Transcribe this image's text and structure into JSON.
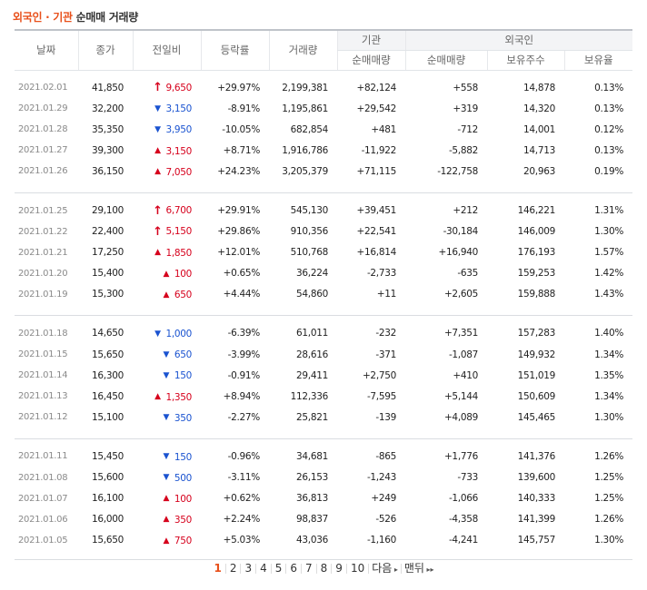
{
  "title": {
    "part1": "외국인 · 기관",
    "part2": "순매매 거래량"
  },
  "headers": {
    "date": "날짜",
    "close": "종가",
    "diff": "전일비",
    "rate": "등락률",
    "volume": "거래량",
    "inst": "기관",
    "foreign": "외국인",
    "inst_net": "순매매량",
    "for_net": "순매매량",
    "hold": "보유주수",
    "ratio": "보유율"
  },
  "groups": [
    [
      {
        "date": "2021.02.01",
        "close": "41,850",
        "dir": "limit-up",
        "diff": "9,650",
        "rate": "+29.97%",
        "volume": "2,199,381",
        "inst": "+82,124",
        "foreign": "+558",
        "hold": "14,878",
        "ratio": "0.13%"
      },
      {
        "date": "2021.01.29",
        "close": "32,200",
        "dir": "down",
        "diff": "3,150",
        "rate": "-8.91%",
        "volume": "1,195,861",
        "inst": "+29,542",
        "foreign": "+319",
        "hold": "14,320",
        "ratio": "0.13%"
      },
      {
        "date": "2021.01.28",
        "close": "35,350",
        "dir": "down",
        "diff": "3,950",
        "rate": "-10.05%",
        "volume": "682,854",
        "inst": "+481",
        "foreign": "-712",
        "hold": "14,001",
        "ratio": "0.12%"
      },
      {
        "date": "2021.01.27",
        "close": "39,300",
        "dir": "up",
        "diff": "3,150",
        "rate": "+8.71%",
        "volume": "1,916,786",
        "inst": "-11,922",
        "foreign": "-5,882",
        "hold": "14,713",
        "ratio": "0.13%"
      },
      {
        "date": "2021.01.26",
        "close": "36,150",
        "dir": "up",
        "diff": "7,050",
        "rate": "+24.23%",
        "volume": "3,205,379",
        "inst": "+71,115",
        "foreign": "-122,758",
        "hold": "20,963",
        "ratio": "0.19%"
      }
    ],
    [
      {
        "date": "2021.01.25",
        "close": "29,100",
        "dir": "limit-up",
        "diff": "6,700",
        "rate": "+29.91%",
        "volume": "545,130",
        "inst": "+39,451",
        "foreign": "+212",
        "hold": "146,221",
        "ratio": "1.31%"
      },
      {
        "date": "2021.01.22",
        "close": "22,400",
        "dir": "limit-up",
        "diff": "5,150",
        "rate": "+29.86%",
        "volume": "910,356",
        "inst": "+22,541",
        "foreign": "-30,184",
        "hold": "146,009",
        "ratio": "1.30%"
      },
      {
        "date": "2021.01.21",
        "close": "17,250",
        "dir": "up",
        "diff": "1,850",
        "rate": "+12.01%",
        "volume": "510,768",
        "inst": "+16,814",
        "foreign": "+16,940",
        "hold": "176,193",
        "ratio": "1.57%"
      },
      {
        "date": "2021.01.20",
        "close": "15,400",
        "dir": "up",
        "diff": "100",
        "rate": "+0.65%",
        "volume": "36,224",
        "inst": "-2,733",
        "foreign": "-635",
        "hold": "159,253",
        "ratio": "1.42%"
      },
      {
        "date": "2021.01.19",
        "close": "15,300",
        "dir": "up",
        "diff": "650",
        "rate": "+4.44%",
        "volume": "54,860",
        "inst": "+11",
        "foreign": "+2,605",
        "hold": "159,888",
        "ratio": "1.43%"
      }
    ],
    [
      {
        "date": "2021.01.18",
        "close": "14,650",
        "dir": "down",
        "diff": "1,000",
        "rate": "-6.39%",
        "volume": "61,011",
        "inst": "-232",
        "foreign": "+7,351",
        "hold": "157,283",
        "ratio": "1.40%"
      },
      {
        "date": "2021.01.15",
        "close": "15,650",
        "dir": "down",
        "diff": "650",
        "rate": "-3.99%",
        "volume": "28,616",
        "inst": "-371",
        "foreign": "-1,087",
        "hold": "149,932",
        "ratio": "1.34%"
      },
      {
        "date": "2021.01.14",
        "close": "16,300",
        "dir": "down",
        "diff": "150",
        "rate": "-0.91%",
        "volume": "29,411",
        "inst": "+2,750",
        "foreign": "+410",
        "hold": "151,019",
        "ratio": "1.35%"
      },
      {
        "date": "2021.01.13",
        "close": "16,450",
        "dir": "up",
        "diff": "1,350",
        "rate": "+8.94%",
        "volume": "112,336",
        "inst": "-7,595",
        "foreign": "+5,144",
        "hold": "150,609",
        "ratio": "1.34%"
      },
      {
        "date": "2021.01.12",
        "close": "15,100",
        "dir": "down",
        "diff": "350",
        "rate": "-2.27%",
        "volume": "25,821",
        "inst": "-139",
        "foreign": "+4,089",
        "hold": "145,465",
        "ratio": "1.30%"
      }
    ],
    [
      {
        "date": "2021.01.11",
        "close": "15,450",
        "dir": "down",
        "diff": "150",
        "rate": "-0.96%",
        "volume": "34,681",
        "inst": "-865",
        "foreign": "+1,776",
        "hold": "141,376",
        "ratio": "1.26%"
      },
      {
        "date": "2021.01.08",
        "close": "15,600",
        "dir": "down",
        "diff": "500",
        "rate": "-3.11%",
        "volume": "26,153",
        "inst": "-1,243",
        "foreign": "-733",
        "hold": "139,600",
        "ratio": "1.25%"
      },
      {
        "date": "2021.01.07",
        "close": "16,100",
        "dir": "up",
        "diff": "100",
        "rate": "+0.62%",
        "volume": "36,813",
        "inst": "+249",
        "foreign": "-1,066",
        "hold": "140,333",
        "ratio": "1.25%"
      },
      {
        "date": "2021.01.06",
        "close": "16,000",
        "dir": "up",
        "diff": "350",
        "rate": "+2.24%",
        "volume": "98,837",
        "inst": "-526",
        "foreign": "-4,358",
        "hold": "141,399",
        "ratio": "1.26%"
      },
      {
        "date": "2021.01.05",
        "close": "15,650",
        "dir": "up",
        "diff": "750",
        "rate": "+5.03%",
        "volume": "43,036",
        "inst": "-1,160",
        "foreign": "-4,241",
        "hold": "145,757",
        "ratio": "1.30%"
      }
    ]
  ],
  "pagination": {
    "pages": [
      "1",
      "2",
      "3",
      "4",
      "5",
      "6",
      "7",
      "8",
      "9",
      "10"
    ],
    "current": "1",
    "next_label": "다음",
    "last_label": "맨뒤"
  },
  "colors": {
    "up": "#d6001c",
    "down": "#1a53d0",
    "accent": "#e8501b"
  },
  "icons": {
    "limit-up": "limit-up-arrow-icon",
    "up": "up-triangle-icon",
    "down": "down-triangle-icon"
  }
}
